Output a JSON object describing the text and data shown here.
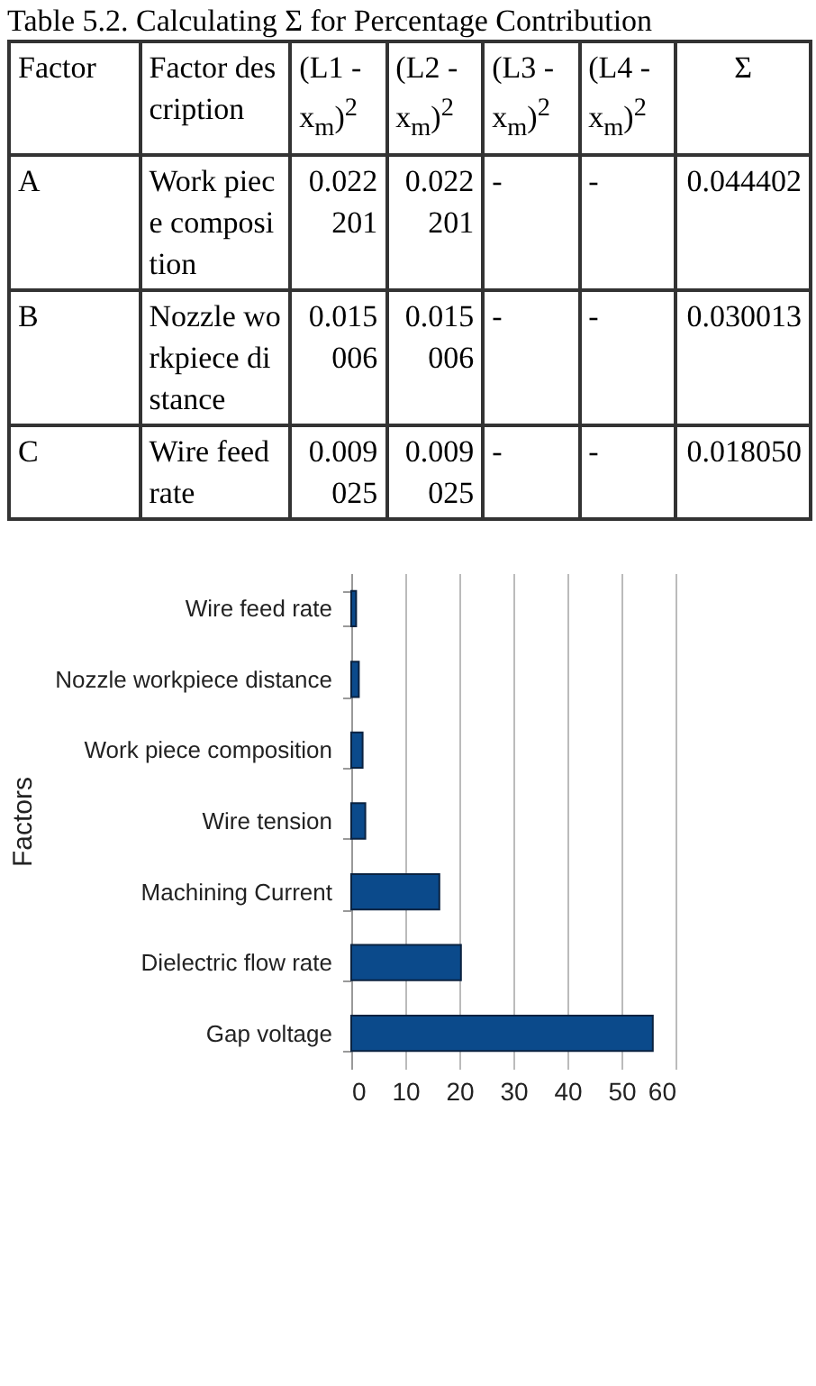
{
  "chart_data": [
    {
      "type": "other",
      "title": "Table 5.2.  Calculating Σ for Percentage Contribution",
      "annotations": [
        "Factor",
        "Factor description",
        "(L1 - x$_{m}$)$^{2}$",
        "(L2 - x$_{m}$)$^{2}$",
        "(L3 - x$_{m}$)$^{2}$",
        "(L4 - x$_{m}$)$^{2}$",
        "Σ",
        "A",
        "Work piece composition",
        "0.022201",
        "0.022201",
        "-",
        "-",
        "0.044402",
        "B",
        "Nozzle workpiece distance",
        "0.015006",
        "0.015006",
        "-",
        "-",
        "0.030013",
        "C",
        "Wire feed rate",
        "0.009025",
        "0.009025",
        "-",
        "-",
        "0.018050"
      ]
    },
    {
      "type": "bar",
      "orientation": "horizontal",
      "ylabel": "Factors",
      "categories": [
        "Wire feed rate",
        "Nozzle workpiece distance",
        "Work piece composition",
        "Wire tension",
        "Machining Current",
        "Dielectric flow rate",
        "Gap voltage"
      ],
      "values": [
        0.9,
        1.4,
        2.1,
        2.6,
        16.3,
        20.3,
        55.8
      ],
      "color": "#0b4a8b",
      "xlim": [
        0,
        60
      ],
      "xticks": [
        0,
        10,
        20,
        30,
        40,
        50,
        60
      ],
      "grid": "x"
    }
  ]
}
